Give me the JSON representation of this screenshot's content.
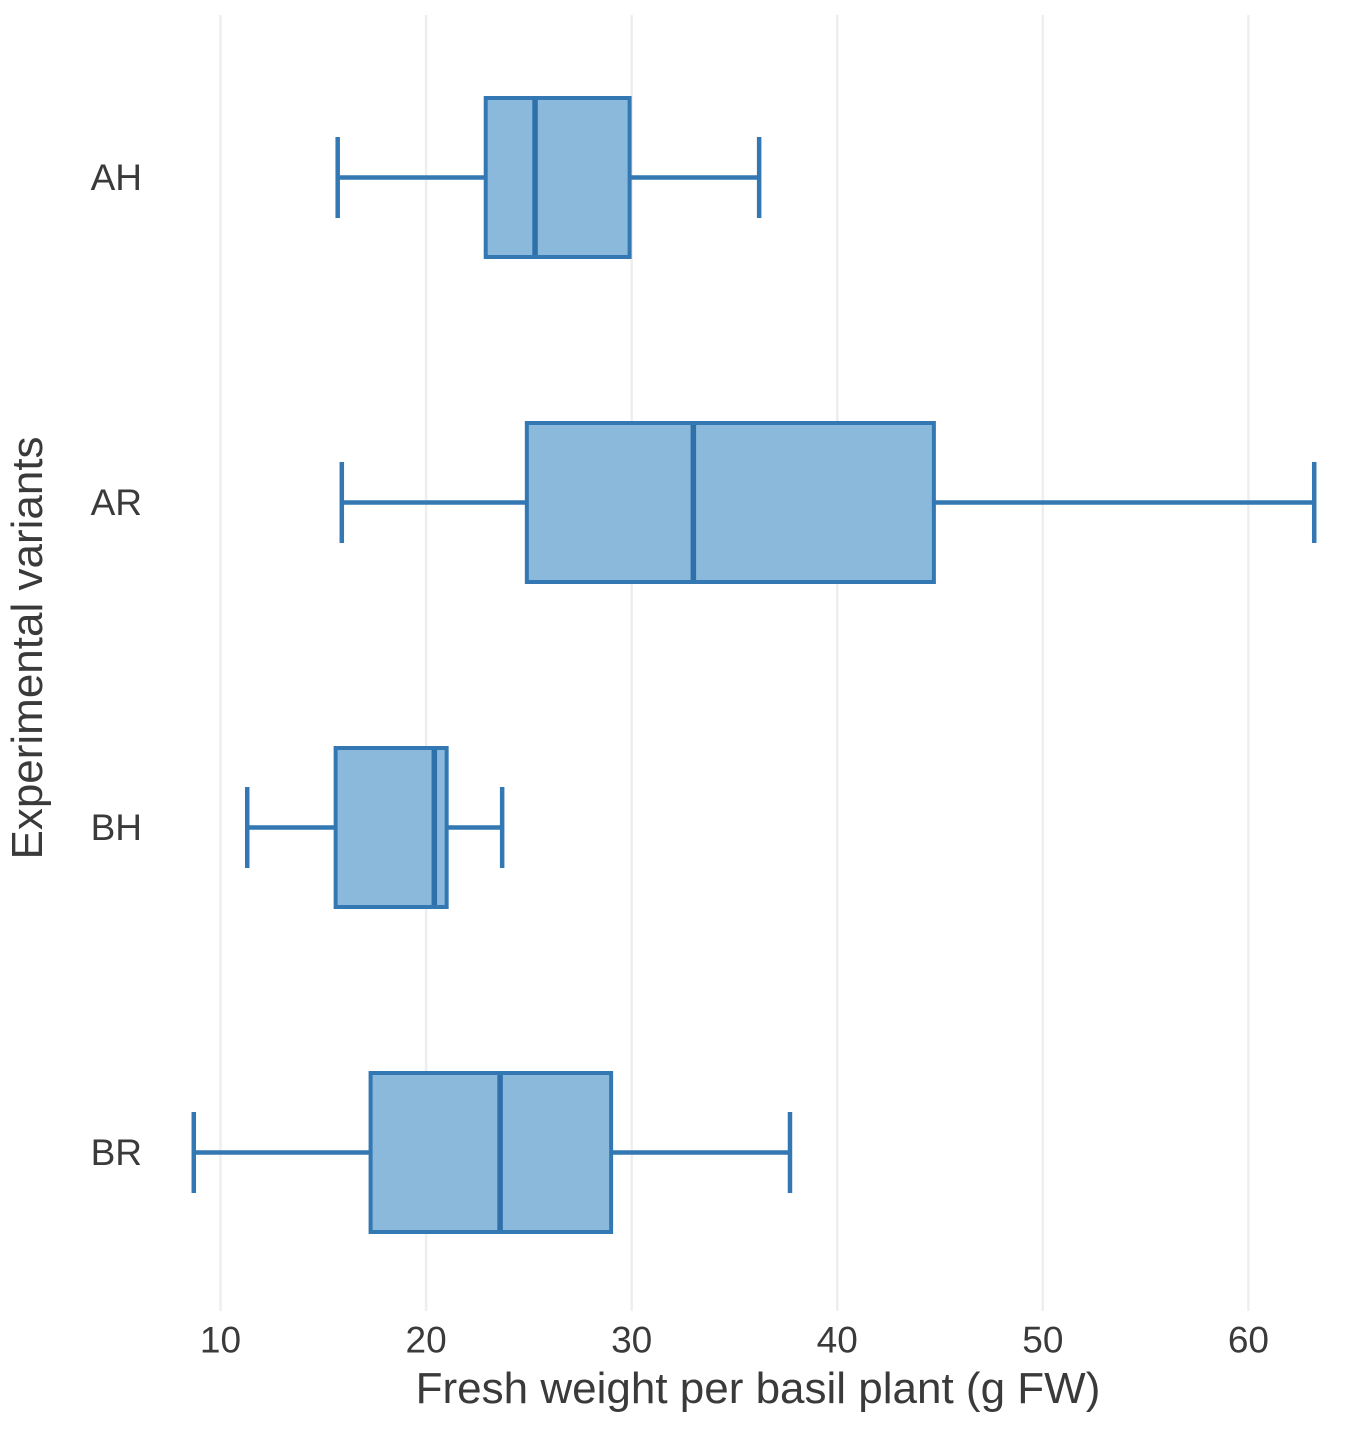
{
  "chart_data": {
    "type": "boxplot",
    "orientation": "horizontal",
    "title": "",
    "xlabel": "Fresh weight per basil plant (g FW)",
    "ylabel": "Experimental variants",
    "categories": [
      "AH",
      "AR",
      "BH",
      "BR"
    ],
    "xticks": [
      10,
      20,
      30,
      40,
      50,
      60
    ],
    "xlim": [
      7.3,
      64.6
    ],
    "grid": "vertical gridlines, light gray, no axis spines",
    "legend": "none",
    "series": [
      {
        "name": "AH",
        "min": 15.7,
        "q1": 22.9,
        "median": 25.3,
        "q3": 29.9,
        "max": 36.2
      },
      {
        "name": "AR",
        "min": 15.9,
        "q1": 24.9,
        "median": 33.0,
        "q3": 44.7,
        "max": 63.2
      },
      {
        "name": "BH",
        "min": 11.3,
        "q1": 15.6,
        "median": 20.4,
        "q3": 21.0,
        "max": 23.7
      },
      {
        "name": "BR",
        "min": 8.7,
        "q1": 17.3,
        "median": 23.6,
        "q3": 29.0,
        "max": 37.7
      }
    ],
    "colors": {
      "box_fill": "#8ab9dc",
      "box_stroke": "#3478b3",
      "median_stroke": "#2e70a9",
      "grid": "#eeeeee",
      "text": "#3a3a3a",
      "background": "#ffffff"
    }
  }
}
